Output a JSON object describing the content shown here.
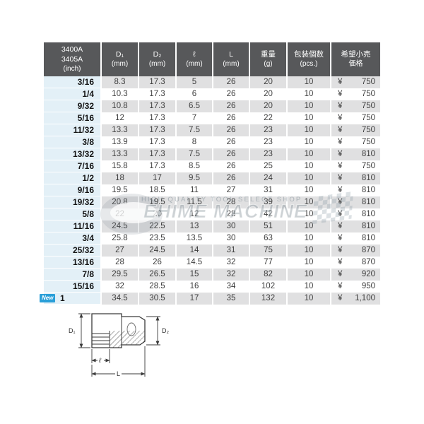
{
  "table": {
    "header": {
      "model": [
        "3400A",
        "3405A",
        "(inch)"
      ],
      "cols": [
        {
          "l1": "D₁",
          "l2": "(mm)"
        },
        {
          "l1": "D₂",
          "l2": "(mm)"
        },
        {
          "l1": "ℓ",
          "l2": "(mm)"
        },
        {
          "l1": "L",
          "l2": "(mm)"
        },
        {
          "l1": "重量",
          "l2": "(g)"
        },
        {
          "l1": "包装個数",
          "l2": "(pcs.)"
        },
        {
          "l1": "希望小売",
          "l2": "価格"
        }
      ]
    },
    "currency": "¥",
    "rows": [
      {
        "inch": "3/16",
        "vals": [
          "8.3",
          "17.3",
          "5",
          "26",
          "20",
          "10"
        ],
        "price": "750",
        "new": false
      },
      {
        "inch": "1/4",
        "vals": [
          "10.3",
          "17.3",
          "6",
          "26",
          "20",
          "10"
        ],
        "price": "750",
        "new": false
      },
      {
        "inch": "9/32",
        "vals": [
          "10.8",
          "17.3",
          "6.5",
          "26",
          "20",
          "10"
        ],
        "price": "750",
        "new": false
      },
      {
        "inch": "5/16",
        "vals": [
          "12",
          "17.3",
          "7",
          "26",
          "22",
          "10"
        ],
        "price": "750",
        "new": false
      },
      {
        "inch": "11/32",
        "vals": [
          "13.3",
          "17.3",
          "7.5",
          "26",
          "23",
          "10"
        ],
        "price": "750",
        "new": false
      },
      {
        "inch": "3/8",
        "vals": [
          "13.9",
          "17.3",
          "8",
          "26",
          "23",
          "10"
        ],
        "price": "750",
        "new": false
      },
      {
        "inch": "13/32",
        "vals": [
          "13.3",
          "17.3",
          "7.5",
          "26",
          "23",
          "10"
        ],
        "price": "810",
        "new": false
      },
      {
        "inch": "7/16",
        "vals": [
          "15.8",
          "17.3",
          "8.5",
          "26",
          "25",
          "10"
        ],
        "price": "750",
        "new": false
      },
      {
        "inch": "1/2",
        "vals": [
          "18",
          "17",
          "9.5",
          "26",
          "24",
          "10"
        ],
        "price": "810",
        "new": false
      },
      {
        "inch": "9/16",
        "vals": [
          "19.5",
          "18.5",
          "11",
          "27",
          "31",
          "10"
        ],
        "price": "810",
        "new": false
      },
      {
        "inch": "19/32",
        "vals": [
          "20.8",
          "19.5",
          "11.5",
          "28",
          "39",
          "10"
        ],
        "price": "810",
        "new": false
      },
      {
        "inch": "5/8",
        "vals": [
          "22",
          "20",
          "12",
          "28",
          "42",
          "10"
        ],
        "price": "810",
        "new": false
      },
      {
        "inch": "11/16",
        "vals": [
          "24.5",
          "22.5",
          "13",
          "30",
          "51",
          "10"
        ],
        "price": "810",
        "new": false
      },
      {
        "inch": "3/4",
        "vals": [
          "25.8",
          "23.5",
          "13.5",
          "30",
          "63",
          "10"
        ],
        "price": "810",
        "new": false
      },
      {
        "inch": "25/32",
        "vals": [
          "27",
          "24.5",
          "14",
          "31",
          "75",
          "10"
        ],
        "price": "870",
        "new": false
      },
      {
        "inch": "13/16",
        "vals": [
          "28",
          "26",
          "14.5",
          "32",
          "77",
          "10"
        ],
        "price": "870",
        "new": false
      },
      {
        "inch": "7/8",
        "vals": [
          "29.5",
          "26.5",
          "15",
          "32",
          "82",
          "10"
        ],
        "price": "920",
        "new": false
      },
      {
        "inch": "15/16",
        "vals": [
          "32",
          "28.5",
          "16",
          "34",
          "102",
          "10"
        ],
        "price": "950",
        "new": false
      },
      {
        "inch": "1",
        "vals": [
          "34.5",
          "30.5",
          "17",
          "35",
          "132",
          "10"
        ],
        "price": "1,100",
        "new": true
      }
    ]
  },
  "badge": {
    "new_label": "New"
  },
  "watermark": {
    "tagline": "HIGH QUALITY TOOL SELECT SHOP",
    "brand": "EHIME MACHINE"
  },
  "diagram": {
    "d1": "D₁",
    "d2": "D₂",
    "ell": "ℓ",
    "len": "L"
  },
  "colors": {
    "header_bg": "#57585a",
    "stripe": "#e0e0e1",
    "inch_col": "#e3f0f7",
    "new_badge": "#2a9fd8"
  }
}
